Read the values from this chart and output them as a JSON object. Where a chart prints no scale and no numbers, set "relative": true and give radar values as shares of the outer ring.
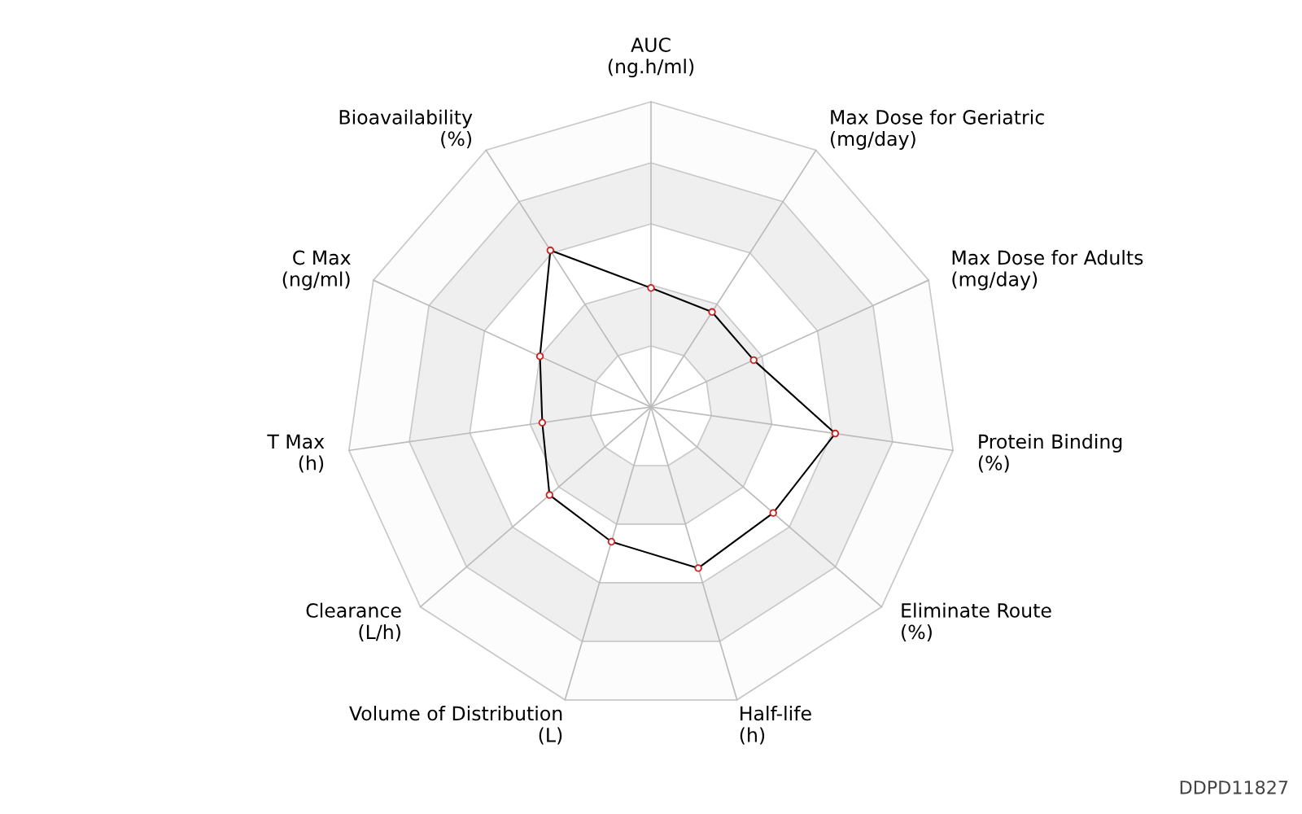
{
  "chart_data": {
    "type": "radar",
    "relative": true,
    "categories": [
      "AUC\n(ng.h/ml)",
      "Max Dose for Geriatric\n(mg/day)",
      "Max Dose for Adults\n(mg/day)",
      "Protein Binding\n(%)",
      "Eliminate Route\n(%)",
      "Half-life\n(h)",
      "Volume of Distribution\n(L)",
      "Clearance\n(L/h)",
      "T Max\n(h)",
      "C Max\n(ng/ml)",
      "Bioavailability\n(%)"
    ],
    "series": [
      {
        "color": "#000000",
        "values": [
          0.39,
          0.37,
          0.37,
          0.61,
          0.53,
          0.55,
          0.46,
          0.44,
          0.36,
          0.4,
          0.61
        ]
      }
    ],
    "marker": "circle",
    "grid": true,
    "annotations": [
      "DDPD11827"
    ]
  }
}
